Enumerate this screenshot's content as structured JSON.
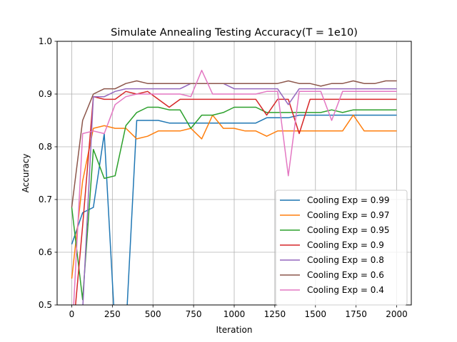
{
  "chart_data": {
    "type": "line",
    "title": "Simulate Annealing Testing Accuracy(T = 1e10)",
    "xlabel": "Iteration",
    "ylabel": "Accuracy",
    "xlim": [
      -90,
      2090
    ],
    "ylim": [
      0.5,
      1.0
    ],
    "xticks": [
      0,
      250,
      500,
      750,
      1000,
      1250,
      1500,
      1750,
      2000
    ],
    "xtick_labels": [
      "0",
      "250",
      "500",
      "750",
      "1000",
      "1250",
      "1500",
      "1750",
      "2000"
    ],
    "yticks": [
      0.5,
      0.6,
      0.7,
      0.8,
      0.9,
      1.0
    ],
    "ytick_labels": [
      "0.5",
      "0.6",
      "0.7",
      "0.8",
      "0.9",
      "1.0"
    ],
    "grid": true,
    "legend_position": "lower-right",
    "x": [
      0,
      67,
      133,
      200,
      267,
      333,
      400,
      467,
      533,
      600,
      667,
      733,
      800,
      867,
      933,
      1000,
      1067,
      1133,
      1200,
      1267,
      1333,
      1400,
      1467,
      1533,
      1600,
      1667,
      1733,
      1800,
      1867,
      1933,
      2000
    ],
    "series": [
      {
        "name": "Cooling Exp = 0.99",
        "color": "#1f77b4",
        "values": [
          0.615,
          0.675,
          0.685,
          0.825,
          0.45,
          0.45,
          0.85,
          0.85,
          0.85,
          0.845,
          0.845,
          0.845,
          0.845,
          0.845,
          0.845,
          0.845,
          0.845,
          0.845,
          0.855,
          0.855,
          0.855,
          0.86,
          0.86,
          0.86,
          0.86,
          0.86,
          0.86,
          0.86,
          0.86,
          0.86,
          0.86
        ]
      },
      {
        "name": "Cooling Exp = 0.97",
        "color": "#ff7f0e",
        "values": [
          0.55,
          0.735,
          0.835,
          0.84,
          0.835,
          0.835,
          0.815,
          0.82,
          0.83,
          0.83,
          0.83,
          0.835,
          0.815,
          0.86,
          0.835,
          0.835,
          0.83,
          0.83,
          0.82,
          0.83,
          0.83,
          0.83,
          0.83,
          0.83,
          0.83,
          0.83,
          0.86,
          0.83,
          0.83,
          0.83,
          0.83
        ]
      },
      {
        "name": "Cooling Exp = 0.95",
        "color": "#2ca02c",
        "values": [
          0.685,
          0.51,
          0.795,
          0.74,
          0.745,
          0.84,
          0.865,
          0.875,
          0.875,
          0.87,
          0.87,
          0.835,
          0.86,
          0.86,
          0.865,
          0.875,
          0.875,
          0.875,
          0.865,
          0.865,
          0.865,
          0.865,
          0.865,
          0.865,
          0.87,
          0.865,
          0.87,
          0.87,
          0.87,
          0.87,
          0.87
        ]
      },
      {
        "name": "Cooling Exp = 0.9",
        "color": "#d62728",
        "values": [
          0.42,
          0.65,
          0.895,
          0.89,
          0.89,
          0.905,
          0.9,
          0.905,
          0.89,
          0.875,
          0.89,
          0.89,
          0.89,
          0.89,
          0.89,
          0.89,
          0.89,
          0.89,
          0.86,
          0.89,
          0.89,
          0.825,
          0.89,
          0.89,
          0.89,
          0.89,
          0.89,
          0.89,
          0.89,
          0.89,
          0.89
        ]
      },
      {
        "name": "Cooling Exp = 0.8",
        "color": "#9467bd",
        "values": [
          0.42,
          0.49,
          0.895,
          0.895,
          0.905,
          0.91,
          0.91,
          0.91,
          0.91,
          0.91,
          0.91,
          0.92,
          0.92,
          0.92,
          0.92,
          0.91,
          0.91,
          0.91,
          0.91,
          0.91,
          0.88,
          0.91,
          0.91,
          0.91,
          0.91,
          0.91,
          0.91,
          0.91,
          0.91,
          0.91,
          0.91
        ]
      },
      {
        "name": "Cooling Exp = 0.6",
        "color": "#8c564b",
        "values": [
          0.685,
          0.85,
          0.9,
          0.91,
          0.91,
          0.92,
          0.925,
          0.92,
          0.92,
          0.92,
          0.92,
          0.92,
          0.92,
          0.92,
          0.92,
          0.92,
          0.92,
          0.92,
          0.92,
          0.92,
          0.925,
          0.92,
          0.92,
          0.915,
          0.92,
          0.92,
          0.925,
          0.92,
          0.92,
          0.925,
          0.925
        ]
      },
      {
        "name": "Cooling Exp = 0.4",
        "color": "#e377c2",
        "values": [
          0.43,
          0.825,
          0.83,
          0.825,
          0.88,
          0.895,
          0.9,
          0.9,
          0.9,
          0.9,
          0.9,
          0.895,
          0.945,
          0.9,
          0.9,
          0.9,
          0.9,
          0.9,
          0.905,
          0.905,
          0.745,
          0.905,
          0.905,
          0.905,
          0.85,
          0.905,
          0.905,
          0.905,
          0.905,
          0.905,
          0.905
        ]
      }
    ]
  }
}
